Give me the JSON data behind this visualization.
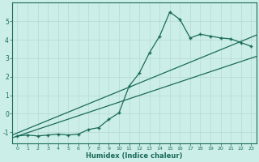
{
  "xlabel": "Humidex (Indice chaleur)",
  "bg_color": "#cceee8",
  "line_color": "#1a6b5a",
  "grid_color": "#b8ddd6",
  "xlim": [
    -0.5,
    23.5
  ],
  "ylim": [
    -1.6,
    6.0
  ],
  "yticks": [
    -1,
    0,
    1,
    2,
    3,
    4,
    5
  ],
  "xticks": [
    0,
    1,
    2,
    3,
    4,
    5,
    6,
    7,
    8,
    9,
    10,
    11,
    12,
    13,
    14,
    15,
    16,
    17,
    18,
    19,
    20,
    21,
    22,
    23
  ],
  "x_data": [
    0,
    1,
    2,
    3,
    4,
    5,
    6,
    7,
    8,
    9,
    10,
    11,
    12,
    13,
    14,
    15,
    16,
    17,
    18,
    19,
    20,
    21,
    22,
    23
  ],
  "y_data": [
    -1.2,
    -1.15,
    -1.2,
    -1.15,
    -1.1,
    -1.15,
    -1.1,
    -0.85,
    -0.75,
    -0.3,
    0.05,
    1.5,
    2.2,
    3.3,
    4.2,
    5.5,
    5.1,
    4.1,
    4.3,
    4.2,
    4.1,
    4.05,
    3.85,
    3.65
  ],
  "line1_x": [
    -0.5,
    23.5
  ],
  "line1_y": [
    -1.3,
    3.1
  ],
  "line2_x": [
    -0.5,
    23.5
  ],
  "line2_y": [
    -1.15,
    4.25
  ]
}
